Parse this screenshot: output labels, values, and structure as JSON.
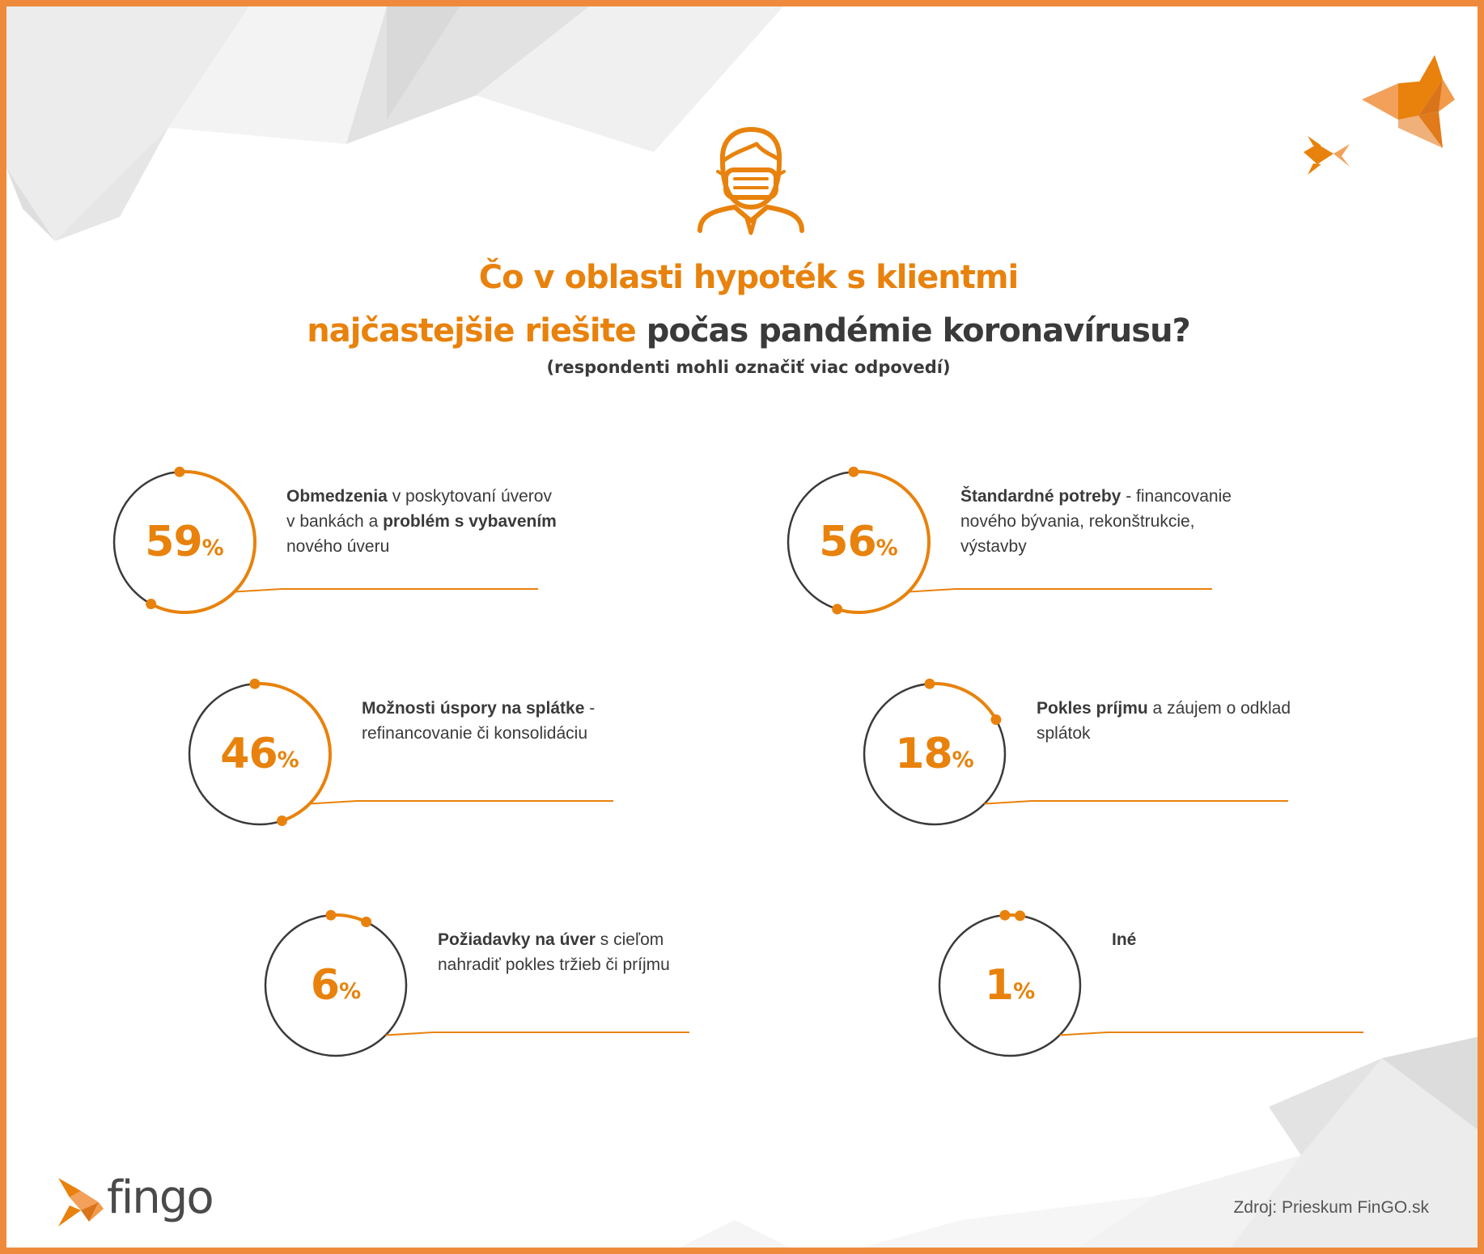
{
  "title_line1": "Čo v oblasti hypoték s klientmi",
  "title_line2_orange": "najčastejšie riešite",
  "title_line2_dark": "počas pandémie koronavírusu?",
  "subtitle": "(respondenti mohli označiť viac odpovedí)",
  "pct_sign": "%",
  "colors": {
    "accent": "#e8820c",
    "ring": "#3a3a3a",
    "border": "#ef8a3c"
  },
  "icons": [
    "masked-person-icon",
    "fish-logo-icon",
    "decorative-fish-icon"
  ],
  "chart_data": {
    "type": "radial-progress",
    "items": [
      {
        "value": 59,
        "label_bold": "Obmedzenia",
        "label_rest": " v poskytovaní úverov v bankách a ",
        "label_bold2": "problém s vybavením",
        "label_rest2": " nového úveru"
      },
      {
        "value": 56,
        "label_bold": "Štandardné potreby",
        "label_rest": " - financovanie nového bývania, rekonštrukcie, výstavby",
        "label_bold2": "",
        "label_rest2": ""
      },
      {
        "value": 46,
        "label_bold": "Možnosti úspory na splátke",
        "label_rest": " - refinancovanie či konsolidáciu",
        "label_bold2": "",
        "label_rest2": ""
      },
      {
        "value": 18,
        "label_bold": "Pokles príjmu",
        "label_rest": " a záujem o odklad splátok",
        "label_bold2": "",
        "label_rest2": ""
      },
      {
        "value": 6,
        "label_bold": "Požiadavky na úver",
        "label_rest": " s cieľom nahradiť pokles tržieb či príjmu",
        "label_bold2": "",
        "label_rest2": ""
      },
      {
        "value": 1,
        "label_bold": "Iné",
        "label_rest": "",
        "label_bold2": "",
        "label_rest2": ""
      }
    ]
  },
  "logo_text": "fingo",
  "source": "Zdroj: Prieskum FinGO.sk"
}
